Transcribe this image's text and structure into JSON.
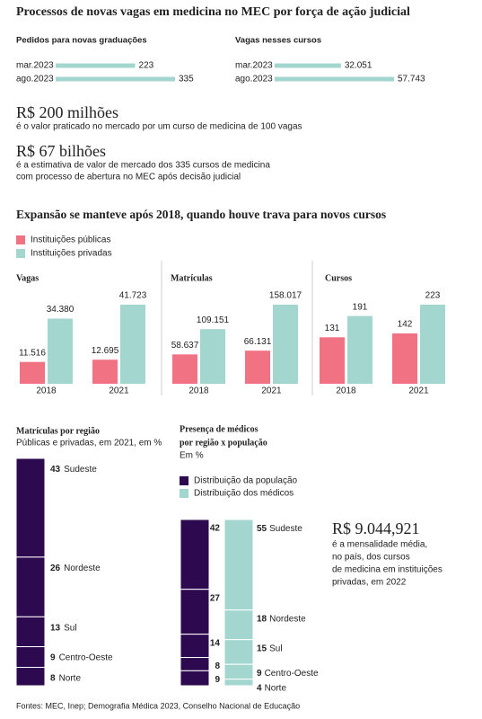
{
  "title": "Processos de novas vagas em medicina no MEC por força de ação judicial",
  "facts": [
    {
      "value": "R$ 200 milhões",
      "lines": [
        "é o valor praticado no mercado por um curso de medicina de 100 vagas"
      ]
    },
    {
      "value": "R$ 67 bilhões",
      "lines": [
        "é a estimativa de valor de mercado dos 335 cursos de medicina",
        "com processo de abertura no MEC após decisão judicial"
      ]
    }
  ],
  "section_title": "Expansão se manteve após 2018, quando houve trava para novos cursos",
  "legend": [
    {
      "name": "Instituições públicas",
      "color": "#f07283"
    },
    {
      "name": "Instituições privadas",
      "color": "#a4d6d0"
    }
  ],
  "highlight": {
    "value": "R$ 9.044,921",
    "lines": [
      "é a mensalidade média,",
      "no país, dos cursos",
      "de medicina em instituições",
      "privadas, em 2022"
    ]
  },
  "source": "Fontes: MEC, Inep; Demografia Médica 2023, Conselho Nacional de Educação",
  "chart_data": [
    {
      "type": "hbar",
      "title": "Pedidos para novas graduações",
      "categories": [
        "mar.2023",
        "ago.2023"
      ],
      "values": [
        223,
        335
      ],
      "color": "#a4d6d0"
    },
    {
      "type": "hbar",
      "title": "Vagas nesses cursos",
      "categories": [
        "mar.2023",
        "ago.2023"
      ],
      "values": [
        32051,
        57743
      ],
      "value_labels": [
        "32.051",
        "57.743"
      ],
      "color": "#a4d6d0"
    },
    {
      "type": "grouped",
      "title": "Vagas",
      "categories": [
        "2018",
        "2021"
      ],
      "series": [
        {
          "color": "#f07283",
          "values": [
            11516,
            12695
          ],
          "value_labels": [
            "11.516",
            "12.695"
          ]
        },
        {
          "color": "#a4d6d0",
          "values": [
            34380,
            41723
          ],
          "value_labels": [
            "34.380",
            "41.723"
          ]
        }
      ]
    },
    {
      "type": "grouped",
      "title": "Matrículas",
      "categories": [
        "2018",
        "2021"
      ],
      "series": [
        {
          "color": "#f07283",
          "values": [
            58637,
            66131
          ],
          "value_labels": [
            "58.637",
            "66.131"
          ]
        },
        {
          "color": "#a4d6d0",
          "values": [
            109151,
            158017
          ],
          "value_labels": [
            "109.151",
            "158.017"
          ]
        }
      ]
    },
    {
      "type": "grouped",
      "title": "Cursos",
      "categories": [
        "2018",
        "2021"
      ],
      "series": [
        {
          "color": "#f07283",
          "values": [
            131,
            142
          ]
        },
        {
          "color": "#a4d6d0",
          "values": [
            191,
            223
          ]
        }
      ]
    },
    {
      "type": "stack",
      "title": "Matrículas por região",
      "subtitle": "Públicas e privadas, em 2021, em %",
      "categories": [
        "Sudeste",
        "Nordeste",
        "Sul",
        "Centro-Oeste",
        "Norte"
      ],
      "values": [
        43,
        26,
        13,
        9,
        8
      ],
      "color": "#2d0a4f"
    },
    {
      "type": "stack2",
      "title": [
        "Presença de médicos",
        "por região x população"
      ],
      "subtitle": "Em %",
      "categories": [
        "Sudeste",
        "Nordeste",
        "Sul",
        "Centro-Oeste",
        "Norte"
      ],
      "series": [
        {
          "name": "Distribuição da população",
          "color": "#2d0a4f",
          "values": [
            42,
            27,
            14,
            8,
            9
          ]
        },
        {
          "name": "Distribuição dos médicos",
          "color": "#a4d6d0",
          "values": [
            55,
            18,
            15,
            9,
            4
          ]
        }
      ]
    }
  ]
}
